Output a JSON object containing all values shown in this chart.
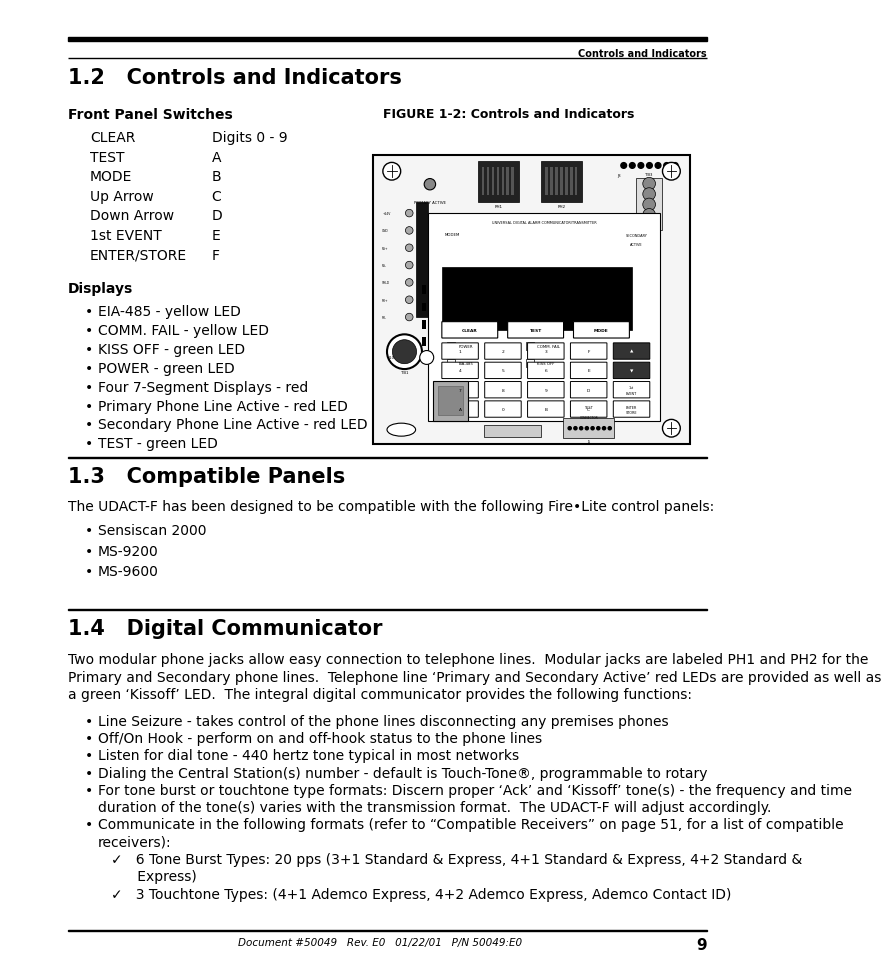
{
  "page_width": 9.54,
  "page_height": 12.35,
  "bg_color": "#ffffff",
  "header_text": "Controls and Indicators",
  "section_1_2_title": "1.2   Controls and Indicators",
  "front_panel_label": "Front Panel Switches",
  "switches": [
    [
      "CLEAR",
      "Digits 0 - 9"
    ],
    [
      "TEST",
      "A"
    ],
    [
      "MODE",
      "B"
    ],
    [
      "Up Arrow",
      "C"
    ],
    [
      "Down Arrow",
      "D"
    ],
    [
      "1st EVENT",
      "E"
    ],
    [
      "ENTER/STORE",
      "F"
    ]
  ],
  "displays_label": "Displays",
  "display_items": [
    "EIA-485 - yellow LED",
    "COMM. FAIL - yellow LED",
    "KISS OFF - green LED",
    "POWER - green LED",
    "Four 7-Segment Displays - red",
    "Primary Phone Line Active - red LED",
    "Secondary Phone Line Active - red LED",
    "TEST - green LED"
  ],
  "figure_label": "FIGURE 1-2: Controls and Indicators",
  "section_1_3_title": "1.3   Compatible Panels",
  "section_1_3_intro": "The UDACT-F has been designed to be compatible with the following Fire•Lite control panels:",
  "compatible_panels": [
    "Sensiscan 2000",
    "MS-9200",
    "MS-9600"
  ],
  "section_1_4_title": "1.4   Digital Communicator",
  "section_1_4_intro_lines": [
    "Two modular phone jacks allow easy connection to telephone lines.  Modular jacks are labeled PH1 and PH2 for the",
    "Primary and Secondary phone lines.  Telephone line ‘Primary and Secondary Active’ red LEDs are provided as well as",
    "a green ‘Kissoff’ LED.  The integral digital communicator provides the following functions:"
  ],
  "digital_comm_bullets": [
    [
      "Line Seizure - takes control of the phone lines disconnecting any premises phones"
    ],
    [
      "Off/On Hook - perform on and off-hook status to the phone lines"
    ],
    [
      "Listen for dial tone - 440 hertz tone typical in most networks"
    ],
    [
      "Dialing the Central Station(s) number - default is Touch-Tone®, programmable to rotary"
    ],
    [
      "For tone burst or touchtone type formats: Discern proper ‘Ack’ and ‘Kissoff’ tone(s) - the frequency and time",
      "duration of the tone(s) varies with the transmission format.  The UDACT-F will adjust accordingly."
    ],
    [
      "Communicate in the following formats (refer to “Compatible Receivers” on page 51, for a list of compatible",
      "receivers):"
    ]
  ],
  "sub_bullets": [
    [
      "✓   6 Tone Burst Types: 20 pps (3+1 Standard & Express, 4+1 Standard & Express, 4+2 Standard &",
      "      Express)"
    ],
    [
      "✓   3 Touchtone Types: (4+1 Ademco Express, 4+2 Ademco Express, Ademco Contact ID)"
    ]
  ],
  "footer_text": "Document #50049   Rev. E0   01/22/01   P/N 50049:E0",
  "footer_page": "9"
}
